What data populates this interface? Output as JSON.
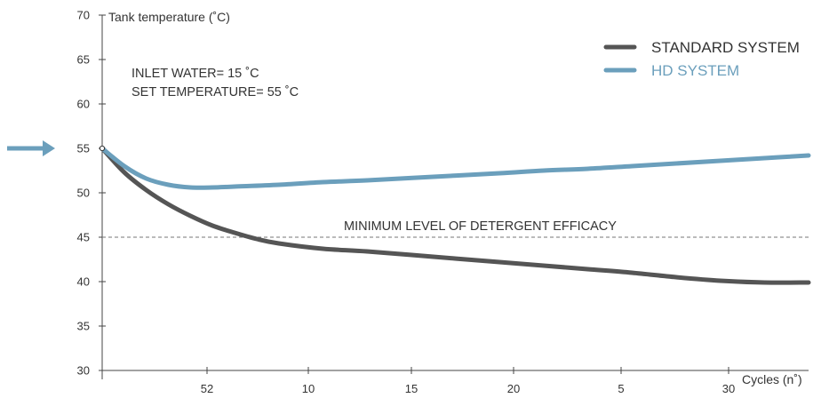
{
  "chart_data": {
    "type": "line",
    "ylabel": "Tank temperature (˚C)",
    "xlabel": "Cycles (n˚)",
    "ylim": [
      30,
      70
    ],
    "yticks": [
      30,
      35,
      40,
      45,
      50,
      55,
      60,
      65,
      70
    ],
    "xticks": [
      "52",
      "10",
      "15",
      "20",
      "5",
      "30"
    ],
    "xlim": [
      0,
      32
    ],
    "annotations": {
      "inlet": "INLET WATER= 15 ˚C",
      "set_temp": "SET TEMPERATURE= 55 ˚C",
      "min_level_label": "MINIMUM LEVEL OF DETERGENT EFFICACY",
      "min_level_value": 45,
      "start_value": 55
    },
    "grid": false,
    "legend_position": "top-right",
    "series": [
      {
        "name": "STANDARD SYSTEM",
        "color": "#555555",
        "x": [
          0,
          1,
          2,
          3,
          4,
          5,
          6,
          7,
          8,
          10,
          12,
          15,
          18,
          20,
          22,
          24,
          26,
          28,
          30,
          32
        ],
        "y": [
          55,
          52.3,
          50.3,
          48.7,
          47.4,
          46.3,
          45.5,
          44.8,
          44.3,
          43.7,
          43.4,
          42.8,
          42.2,
          41.8,
          41.4,
          41.0,
          40.5,
          40.1,
          39.9,
          39.9
        ]
      },
      {
        "name": "HD SYSTEM",
        "color": "#6b9fbc",
        "x": [
          0,
          1,
          2,
          3,
          4,
          5,
          6,
          8,
          10,
          12,
          15,
          18,
          20,
          22,
          24,
          26,
          28,
          30,
          32
        ],
        "y": [
          55,
          53.0,
          51.6,
          50.9,
          50.6,
          50.6,
          50.7,
          50.9,
          51.2,
          51.4,
          51.8,
          52.2,
          52.5,
          52.7,
          53.0,
          53.3,
          53.6,
          53.9,
          54.2
        ]
      }
    ]
  }
}
